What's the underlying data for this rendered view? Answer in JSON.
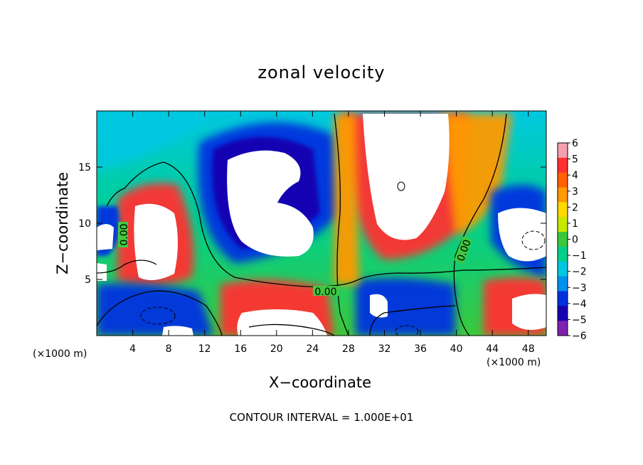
{
  "chart_data": {
    "type": "heatmap",
    "title": "zonal velocity",
    "xlabel": "X−coordinate",
    "ylabel": "Z−coordinate",
    "x_unit_left": "(×1000 m)",
    "x_unit_right": "(×1000 m)",
    "x_ticks": [
      "4",
      "8",
      "12",
      "16",
      "20",
      "24",
      "28",
      "32",
      "36",
      "40",
      "44",
      "48"
    ],
    "y_ticks": [
      "5",
      "10",
      "15"
    ],
    "xlim": [
      0,
      50
    ],
    "ylim": [
      0,
      20
    ],
    "colorbar": {
      "min": -6,
      "max": 6,
      "ticks": [
        "6",
        "5",
        "4",
        "3",
        "2",
        "1",
        "0",
        "−1",
        "−2",
        "−3",
        "−4",
        "−5",
        "−6"
      ],
      "colors": [
        "#f4a0b0",
        "#ff3030",
        "#ff6000",
        "#ff9a00",
        "#ffd800",
        "#c8e800",
        "#3cc83c",
        "#00d08c",
        "#00c8e0",
        "#0090f0",
        "#0030e0",
        "#1800b0",
        "#8020b0"
      ]
    },
    "contour_labels": [
      "0.00",
      "0.00",
      "0.00"
    ],
    "saturated_regions": [
      {
        "x": 18,
        "z": 10.5,
        "sign": "negative"
      },
      {
        "x": 6,
        "z": 9,
        "sign": "positive"
      },
      {
        "x": 35,
        "z": 13,
        "sign": "positive"
      },
      {
        "x": 47,
        "z": 9,
        "sign": "positive"
      },
      {
        "x": 20,
        "z": 2,
        "sign": "positive"
      },
      {
        "x": 46,
        "z": 2.5,
        "sign": "positive"
      },
      {
        "x": 31,
        "z": 2,
        "sign": "positive"
      },
      {
        "x": 1,
        "z": 8.5,
        "sign": "positive"
      },
      {
        "x": 7.5,
        "z": 2.2,
        "sign": "negative"
      }
    ]
  },
  "footer": "CONTOUR INTERVAL = 1.000E+01"
}
